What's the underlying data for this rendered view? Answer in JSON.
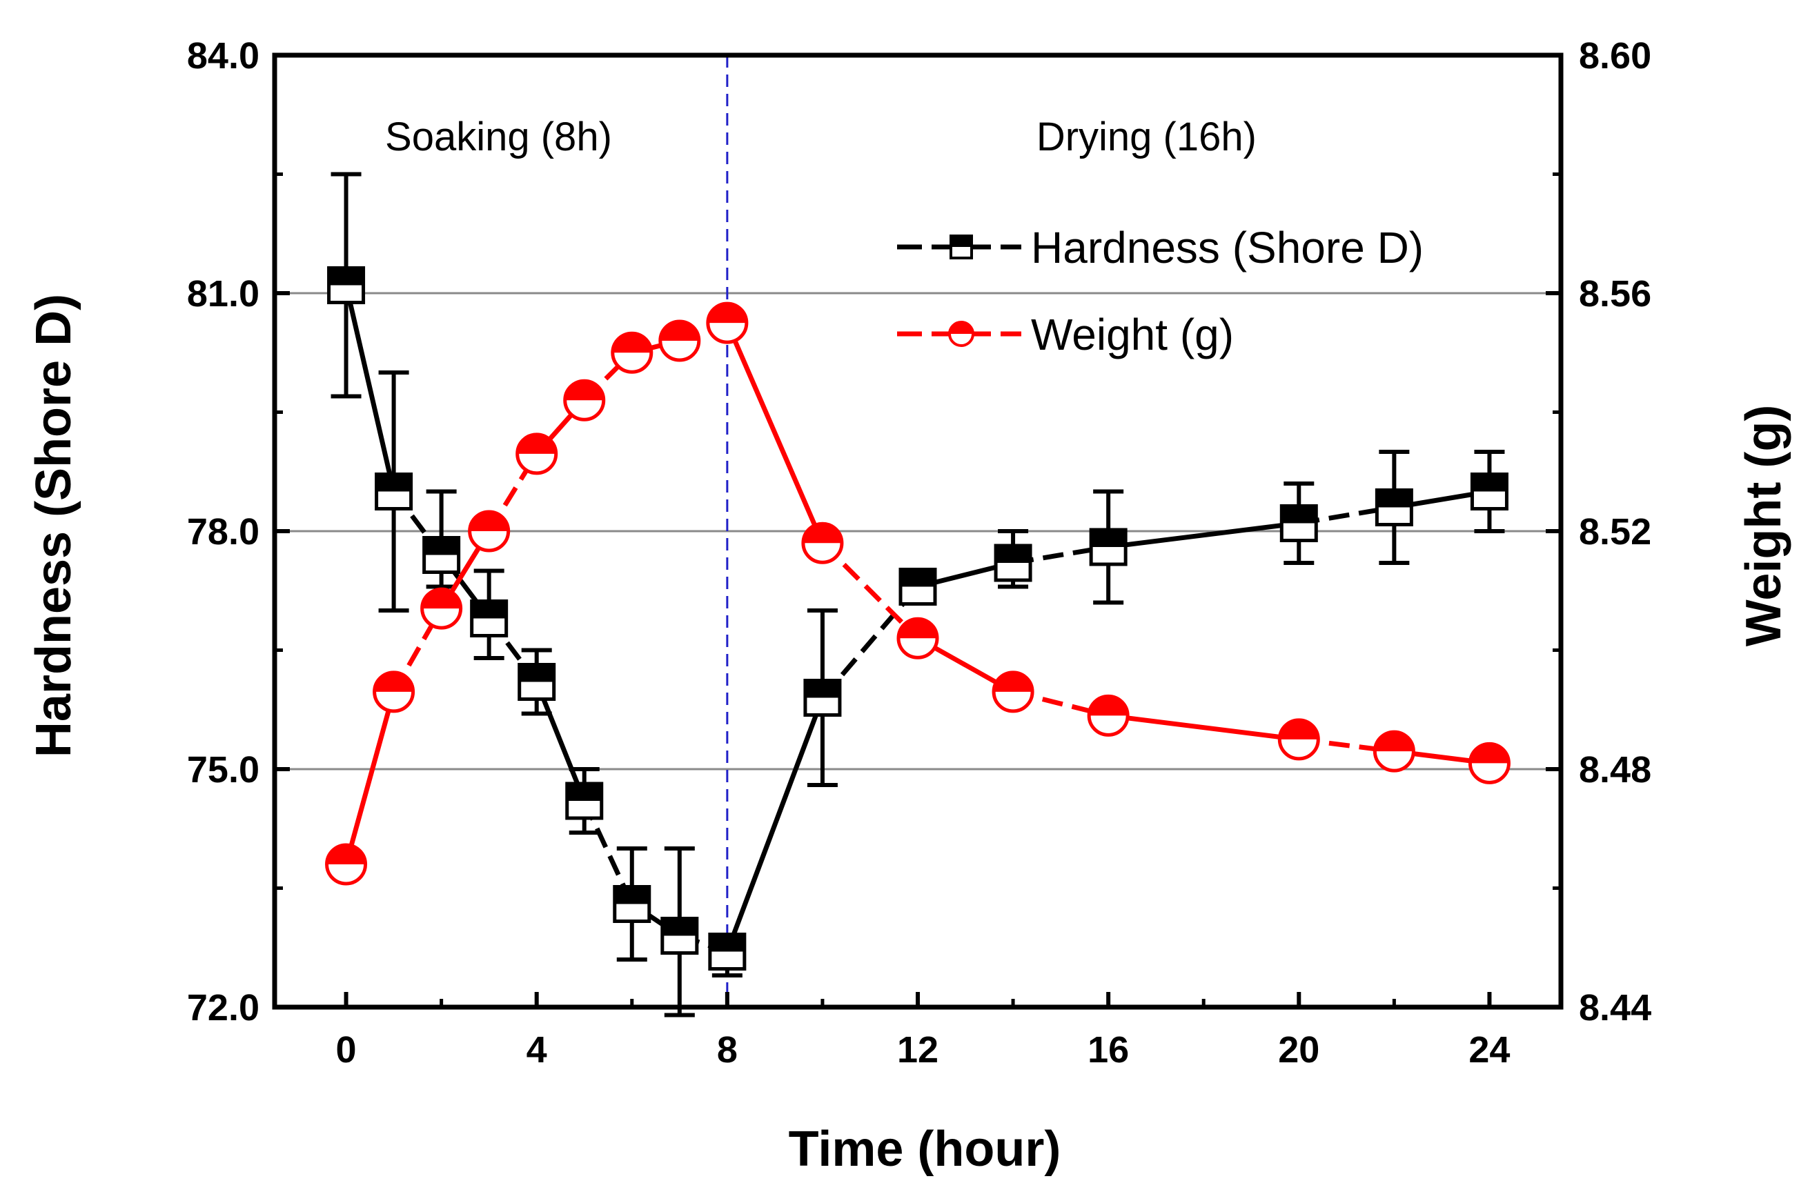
{
  "chart_data": {
    "type": "line",
    "xlabel": "Time (hour)",
    "ylabel_left": "Hardness (Shore D)",
    "ylabel_right": "Weight (g)",
    "xlim": [
      -1.5,
      25.5
    ],
    "xticks": [
      0,
      4,
      8,
      12,
      16,
      20,
      24
    ],
    "xtick_labels": [
      "0",
      "4",
      "8",
      "12",
      "16",
      "20",
      "24"
    ],
    "ylim_left": [
      72.0,
      84.0
    ],
    "yticks_left": [
      72.0,
      75.0,
      78.0,
      81.0,
      84.0
    ],
    "ytick_labels_left": [
      "72.0",
      "75.0",
      "78.0",
      "81.0",
      "84.0"
    ],
    "ylim_right": [
      8.44,
      8.6
    ],
    "yticks_right": [
      8.44,
      8.48,
      8.52,
      8.56,
      8.6
    ],
    "ytick_labels_right": [
      "8.44",
      "8.48",
      "8.52",
      "8.56",
      "8.60"
    ],
    "gridlines_left": [
      75.0,
      78.0,
      81.0
    ],
    "vline_x": 8,
    "annotations": [
      {
        "text": "Soaking (8h)",
        "x": 3.2,
        "y": 82.8
      },
      {
        "text": "Drying (16h)",
        "x": 16.8,
        "y": 82.8
      }
    ],
    "legend_position": "upper-right",
    "series": [
      {
        "name": "Hardness (Shore D)",
        "axis": "left",
        "color": "#000000",
        "marker": "half-filled-square",
        "x": [
          0,
          1,
          2,
          3,
          4,
          5,
          6,
          7,
          8,
          10,
          12,
          14,
          16,
          20,
          22,
          24
        ],
        "values": [
          81.1,
          78.5,
          77.7,
          76.9,
          76.1,
          74.6,
          73.3,
          72.9,
          72.7,
          75.9,
          77.3,
          77.6,
          77.8,
          78.1,
          78.3,
          78.5
        ],
        "err_low": [
          79.7,
          77.0,
          77.3,
          76.4,
          75.7,
          74.2,
          72.6,
          71.9,
          72.4,
          74.8,
          77.2,
          77.3,
          77.1,
          77.6,
          77.6,
          78.0
        ],
        "err_high": [
          82.5,
          80.0,
          78.5,
          77.5,
          76.5,
          75.0,
          74.0,
          74.0,
          72.9,
          77.0,
          77.4,
          78.0,
          78.5,
          78.6,
          79.0,
          79.0
        ]
      },
      {
        "name": "Weight (g)",
        "axis": "right",
        "color": "#ff0000",
        "marker": "half-filled-circle",
        "x": [
          0,
          1,
          2,
          3,
          4,
          5,
          6,
          7,
          8,
          10,
          12,
          14,
          16,
          20,
          22,
          24
        ],
        "values": [
          8.464,
          8.493,
          8.507,
          8.52,
          8.533,
          8.542,
          8.55,
          8.552,
          8.555,
          8.518,
          8.502,
          8.493,
          8.489,
          8.485,
          8.483,
          8.481
        ]
      }
    ]
  }
}
